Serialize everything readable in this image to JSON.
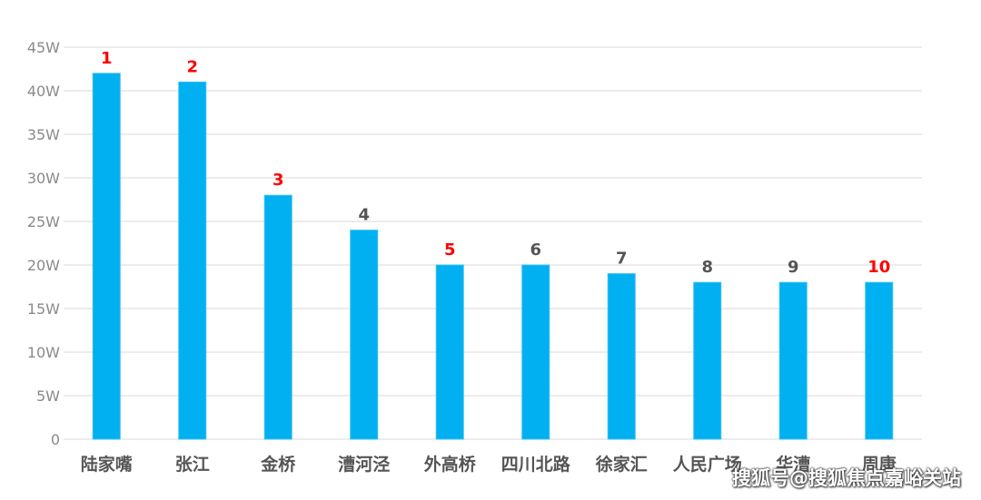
{
  "chart_data": {
    "type": "bar",
    "categories": [
      "陆家嘴",
      "张江",
      "金桥",
      "漕河泾",
      "外高桥",
      "四川北路",
      "徐家汇",
      "人民广场",
      "华漕",
      "周康"
    ],
    "values": [
      42,
      41,
      28,
      24,
      20,
      20,
      19,
      18,
      18,
      18
    ],
    "rank_labels": [
      "1",
      "2",
      "3",
      "4",
      "5",
      "6",
      "7",
      "8",
      "9",
      "10"
    ],
    "rank_label_colors": [
      "#ff0000",
      "#ff0000",
      "#ff0000",
      "#555555",
      "#ff0000",
      "#555555",
      "#555555",
      "#555555",
      "#555555",
      "#ff0000"
    ],
    "y_ticks": [
      "0",
      "5W",
      "10W",
      "15W",
      "20W",
      "25W",
      "30W",
      "35W",
      "40W",
      "45W"
    ],
    "ylim": [
      0,
      45
    ],
    "unit": "W",
    "grid": true,
    "bar_color": "#00b0f0",
    "grid_color": "#d9d9d9"
  },
  "watermark": "搜狐号@搜狐焦点嘉峪关站"
}
